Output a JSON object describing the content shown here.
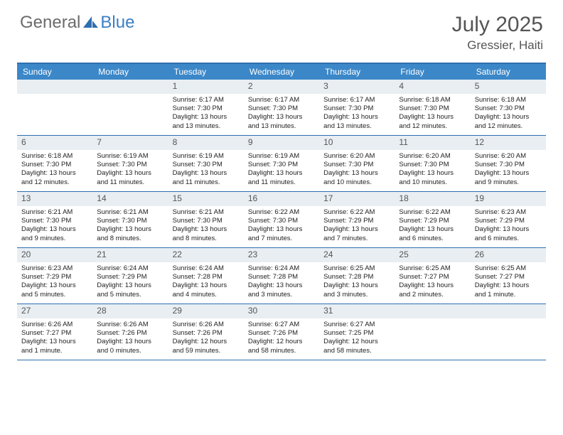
{
  "logo": {
    "text1": "General",
    "text2": "Blue"
  },
  "title": "July 2025",
  "location": "Gressier, Haiti",
  "colors": {
    "header_bg": "#3b87c8",
    "border": "#2f6fb0",
    "daynum_bg": "#e8eef2",
    "text": "#333333",
    "title_text": "#555555"
  },
  "weekdays": [
    "Sunday",
    "Monday",
    "Tuesday",
    "Wednesday",
    "Thursday",
    "Friday",
    "Saturday"
  ],
  "weeks": [
    [
      {
        "n": "",
        "sunrise": "",
        "sunset": "",
        "daylight": ""
      },
      {
        "n": "",
        "sunrise": "",
        "sunset": "",
        "daylight": ""
      },
      {
        "n": "1",
        "sunrise": "Sunrise: 6:17 AM",
        "sunset": "Sunset: 7:30 PM",
        "daylight": "Daylight: 13 hours and 13 minutes."
      },
      {
        "n": "2",
        "sunrise": "Sunrise: 6:17 AM",
        "sunset": "Sunset: 7:30 PM",
        "daylight": "Daylight: 13 hours and 13 minutes."
      },
      {
        "n": "3",
        "sunrise": "Sunrise: 6:17 AM",
        "sunset": "Sunset: 7:30 PM",
        "daylight": "Daylight: 13 hours and 13 minutes."
      },
      {
        "n": "4",
        "sunrise": "Sunrise: 6:18 AM",
        "sunset": "Sunset: 7:30 PM",
        "daylight": "Daylight: 13 hours and 12 minutes."
      },
      {
        "n": "5",
        "sunrise": "Sunrise: 6:18 AM",
        "sunset": "Sunset: 7:30 PM",
        "daylight": "Daylight: 13 hours and 12 minutes."
      }
    ],
    [
      {
        "n": "6",
        "sunrise": "Sunrise: 6:18 AM",
        "sunset": "Sunset: 7:30 PM",
        "daylight": "Daylight: 13 hours and 12 minutes."
      },
      {
        "n": "7",
        "sunrise": "Sunrise: 6:19 AM",
        "sunset": "Sunset: 7:30 PM",
        "daylight": "Daylight: 13 hours and 11 minutes."
      },
      {
        "n": "8",
        "sunrise": "Sunrise: 6:19 AM",
        "sunset": "Sunset: 7:30 PM",
        "daylight": "Daylight: 13 hours and 11 minutes."
      },
      {
        "n": "9",
        "sunrise": "Sunrise: 6:19 AM",
        "sunset": "Sunset: 7:30 PM",
        "daylight": "Daylight: 13 hours and 11 minutes."
      },
      {
        "n": "10",
        "sunrise": "Sunrise: 6:20 AM",
        "sunset": "Sunset: 7:30 PM",
        "daylight": "Daylight: 13 hours and 10 minutes."
      },
      {
        "n": "11",
        "sunrise": "Sunrise: 6:20 AM",
        "sunset": "Sunset: 7:30 PM",
        "daylight": "Daylight: 13 hours and 10 minutes."
      },
      {
        "n": "12",
        "sunrise": "Sunrise: 6:20 AM",
        "sunset": "Sunset: 7:30 PM",
        "daylight": "Daylight: 13 hours and 9 minutes."
      }
    ],
    [
      {
        "n": "13",
        "sunrise": "Sunrise: 6:21 AM",
        "sunset": "Sunset: 7:30 PM",
        "daylight": "Daylight: 13 hours and 9 minutes."
      },
      {
        "n": "14",
        "sunrise": "Sunrise: 6:21 AM",
        "sunset": "Sunset: 7:30 PM",
        "daylight": "Daylight: 13 hours and 8 minutes."
      },
      {
        "n": "15",
        "sunrise": "Sunrise: 6:21 AM",
        "sunset": "Sunset: 7:30 PM",
        "daylight": "Daylight: 13 hours and 8 minutes."
      },
      {
        "n": "16",
        "sunrise": "Sunrise: 6:22 AM",
        "sunset": "Sunset: 7:30 PM",
        "daylight": "Daylight: 13 hours and 7 minutes."
      },
      {
        "n": "17",
        "sunrise": "Sunrise: 6:22 AM",
        "sunset": "Sunset: 7:29 PM",
        "daylight": "Daylight: 13 hours and 7 minutes."
      },
      {
        "n": "18",
        "sunrise": "Sunrise: 6:22 AM",
        "sunset": "Sunset: 7:29 PM",
        "daylight": "Daylight: 13 hours and 6 minutes."
      },
      {
        "n": "19",
        "sunrise": "Sunrise: 6:23 AM",
        "sunset": "Sunset: 7:29 PM",
        "daylight": "Daylight: 13 hours and 6 minutes."
      }
    ],
    [
      {
        "n": "20",
        "sunrise": "Sunrise: 6:23 AM",
        "sunset": "Sunset: 7:29 PM",
        "daylight": "Daylight: 13 hours and 5 minutes."
      },
      {
        "n": "21",
        "sunrise": "Sunrise: 6:24 AM",
        "sunset": "Sunset: 7:29 PM",
        "daylight": "Daylight: 13 hours and 5 minutes."
      },
      {
        "n": "22",
        "sunrise": "Sunrise: 6:24 AM",
        "sunset": "Sunset: 7:28 PM",
        "daylight": "Daylight: 13 hours and 4 minutes."
      },
      {
        "n": "23",
        "sunrise": "Sunrise: 6:24 AM",
        "sunset": "Sunset: 7:28 PM",
        "daylight": "Daylight: 13 hours and 3 minutes."
      },
      {
        "n": "24",
        "sunrise": "Sunrise: 6:25 AM",
        "sunset": "Sunset: 7:28 PM",
        "daylight": "Daylight: 13 hours and 3 minutes."
      },
      {
        "n": "25",
        "sunrise": "Sunrise: 6:25 AM",
        "sunset": "Sunset: 7:27 PM",
        "daylight": "Daylight: 13 hours and 2 minutes."
      },
      {
        "n": "26",
        "sunrise": "Sunrise: 6:25 AM",
        "sunset": "Sunset: 7:27 PM",
        "daylight": "Daylight: 13 hours and 1 minute."
      }
    ],
    [
      {
        "n": "27",
        "sunrise": "Sunrise: 6:26 AM",
        "sunset": "Sunset: 7:27 PM",
        "daylight": "Daylight: 13 hours and 1 minute."
      },
      {
        "n": "28",
        "sunrise": "Sunrise: 6:26 AM",
        "sunset": "Sunset: 7:26 PM",
        "daylight": "Daylight: 13 hours and 0 minutes."
      },
      {
        "n": "29",
        "sunrise": "Sunrise: 6:26 AM",
        "sunset": "Sunset: 7:26 PM",
        "daylight": "Daylight: 12 hours and 59 minutes."
      },
      {
        "n": "30",
        "sunrise": "Sunrise: 6:27 AM",
        "sunset": "Sunset: 7:26 PM",
        "daylight": "Daylight: 12 hours and 58 minutes."
      },
      {
        "n": "31",
        "sunrise": "Sunrise: 6:27 AM",
        "sunset": "Sunset: 7:25 PM",
        "daylight": "Daylight: 12 hours and 58 minutes."
      },
      {
        "n": "",
        "sunrise": "",
        "sunset": "",
        "daylight": ""
      },
      {
        "n": "",
        "sunrise": "",
        "sunset": "",
        "daylight": ""
      }
    ]
  ]
}
